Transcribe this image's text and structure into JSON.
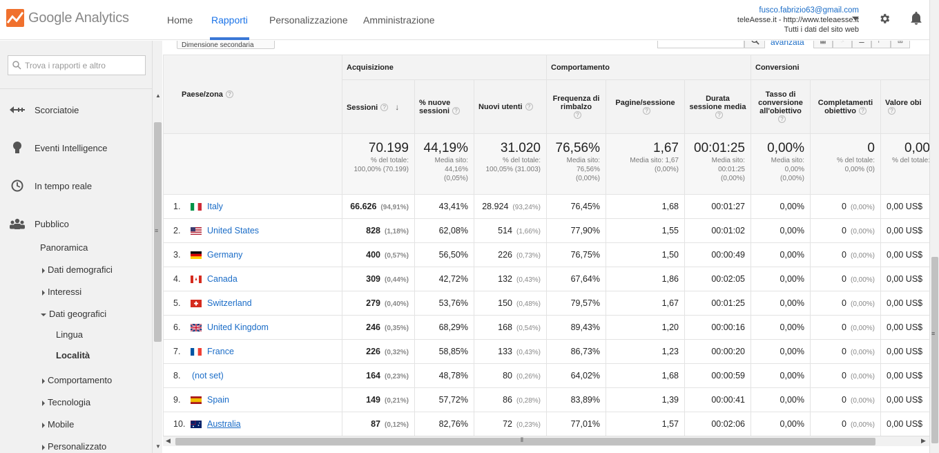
{
  "header": {
    "logo_text": "Google",
    "logo_sub": "Analytics",
    "nav": [
      "Home",
      "Rapporti",
      "Personalizzazione",
      "Amministrazione"
    ],
    "account_email": "fusco.fabrizio63@gmail.com",
    "account_site": "teleAesse.it - http://www.teleaesse.it",
    "account_view": "Tutti i dati del sito web"
  },
  "sidebar": {
    "search_placeholder": "Trova i rapporti e altro",
    "items": [
      {
        "label": "Scorciatoie",
        "icon": "shortcut-icon"
      },
      {
        "label": "Eventi Intelligence",
        "icon": "lightbulb-icon"
      },
      {
        "label": "In tempo reale",
        "icon": "clock-icon"
      },
      {
        "label": "Pubblico",
        "icon": "people-icon"
      }
    ],
    "sub": {
      "panoramica": "Panoramica",
      "dati_demografici": "Dati demografici",
      "interessi": "Interessi",
      "dati_geografici": "Dati geografici",
      "lingua": "Lingua",
      "localita": "Località",
      "comportamento": "Comportamento",
      "tecnologia": "Tecnologia",
      "mobile": "Mobile",
      "personalizzato": "Personalizzato"
    }
  },
  "toolbar": {
    "secondary_dimension": "Dimensione secondaria",
    "advanced": "avanzata"
  },
  "table": {
    "dim_header": "Paese/zona",
    "groups": [
      "Acquisizione",
      "Comportamento",
      "Conversioni"
    ],
    "columns": [
      "Sessioni",
      "% nuove sessioni",
      "Nuovi utenti",
      "Frequenza di rimbalzo",
      "Pagine/sessione",
      "Durata sessione media",
      "Tasso di conversione all'obiettivo",
      "Completamenti obiettivo",
      "Valore obi"
    ],
    "totals": [
      {
        "big": "70.199",
        "l1": "% del totale:",
        "l2": "100,00% (70.199)",
        "l3": ""
      },
      {
        "big": "44,19%",
        "l1": "Media sito:",
        "l2": "44,16%",
        "l3": "(0,05%)"
      },
      {
        "big": "31.020",
        "l1": "% del totale:",
        "l2": "100,05% (31.003)",
        "l3": ""
      },
      {
        "big": "76,56%",
        "l1": "Media sito:",
        "l2": "76,56%",
        "l3": "(0,00%)"
      },
      {
        "big": "1,67",
        "l1": "Media sito: 1,67",
        "l2": "(0,00%)",
        "l3": ""
      },
      {
        "big": "00:01:25",
        "l1": "Media sito:",
        "l2": "00:01:25",
        "l3": "(0,00%)"
      },
      {
        "big": "0,00%",
        "l1": "Media sito:",
        "l2": "0,00%",
        "l3": "(0,00%)"
      },
      {
        "big": "0",
        "l1": "% del totale:",
        "l2": "0,00% (0)",
        "l3": ""
      },
      {
        "big": "0,00",
        "l1": "% del totale:",
        "l2": "",
        "l3": ""
      }
    ],
    "rows": [
      {
        "n": "1.",
        "country": "Italy",
        "flag": "it",
        "sessions": "66.626",
        "sessions_pct": "(94,91%)",
        "new_pct": "43,41%",
        "new_users": "28.924",
        "new_users_pct": "(93,24%)",
        "bounce": "76,45%",
        "pages": "1,68",
        "duration": "00:01:27",
        "conv": "0,00%",
        "goal": "0",
        "goal_pct": "(0,00%)",
        "value": "0,00 US$"
      },
      {
        "n": "2.",
        "country": "United States",
        "flag": "us",
        "sessions": "828",
        "sessions_pct": "(1,18%)",
        "new_pct": "62,08%",
        "new_users": "514",
        "new_users_pct": "(1,66%)",
        "bounce": "77,90%",
        "pages": "1,55",
        "duration": "00:01:02",
        "conv": "0,00%",
        "goal": "0",
        "goal_pct": "(0,00%)",
        "value": "0,00 US$"
      },
      {
        "n": "3.",
        "country": "Germany",
        "flag": "de",
        "sessions": "400",
        "sessions_pct": "(0,57%)",
        "new_pct": "56,50%",
        "new_users": "226",
        "new_users_pct": "(0,73%)",
        "bounce": "76,75%",
        "pages": "1,50",
        "duration": "00:00:49",
        "conv": "0,00%",
        "goal": "0",
        "goal_pct": "(0,00%)",
        "value": "0,00 US$"
      },
      {
        "n": "4.",
        "country": "Canada",
        "flag": "ca",
        "sessions": "309",
        "sessions_pct": "(0,44%)",
        "new_pct": "42,72%",
        "new_users": "132",
        "new_users_pct": "(0,43%)",
        "bounce": "67,64%",
        "pages": "1,86",
        "duration": "00:02:05",
        "conv": "0,00%",
        "goal": "0",
        "goal_pct": "(0,00%)",
        "value": "0,00 US$"
      },
      {
        "n": "5.",
        "country": "Switzerland",
        "flag": "ch",
        "sessions": "279",
        "sessions_pct": "(0,40%)",
        "new_pct": "53,76%",
        "new_users": "150",
        "new_users_pct": "(0,48%)",
        "bounce": "79,57%",
        "pages": "1,67",
        "duration": "00:01:25",
        "conv": "0,00%",
        "goal": "0",
        "goal_pct": "(0,00%)",
        "value": "0,00 US$"
      },
      {
        "n": "6.",
        "country": "United Kingdom",
        "flag": "gb",
        "sessions": "246",
        "sessions_pct": "(0,35%)",
        "new_pct": "68,29%",
        "new_users": "168",
        "new_users_pct": "(0,54%)",
        "bounce": "89,43%",
        "pages": "1,20",
        "duration": "00:00:16",
        "conv": "0,00%",
        "goal": "0",
        "goal_pct": "(0,00%)",
        "value": "0,00 US$"
      },
      {
        "n": "7.",
        "country": "France",
        "flag": "fr",
        "sessions": "226",
        "sessions_pct": "(0,32%)",
        "new_pct": "58,85%",
        "new_users": "133",
        "new_users_pct": "(0,43%)",
        "bounce": "86,73%",
        "pages": "1,23",
        "duration": "00:00:20",
        "conv": "0,00%",
        "goal": "0",
        "goal_pct": "(0,00%)",
        "value": "0,00 US$"
      },
      {
        "n": "8.",
        "country": "(not set)",
        "flag": "",
        "sessions": "164",
        "sessions_pct": "(0,23%)",
        "new_pct": "48,78%",
        "new_users": "80",
        "new_users_pct": "(0,26%)",
        "bounce": "64,02%",
        "pages": "1,68",
        "duration": "00:00:59",
        "conv": "0,00%",
        "goal": "0",
        "goal_pct": "(0,00%)",
        "value": "0,00 US$"
      },
      {
        "n": "9.",
        "country": "Spain",
        "flag": "es",
        "sessions": "149",
        "sessions_pct": "(0,21%)",
        "new_pct": "57,72%",
        "new_users": "86",
        "new_users_pct": "(0,28%)",
        "bounce": "83,89%",
        "pages": "1,39",
        "duration": "00:00:41",
        "conv": "0,00%",
        "goal": "0",
        "goal_pct": "(0,00%)",
        "value": "0,00 US$"
      },
      {
        "n": "10.",
        "country": "Australia",
        "flag": "au",
        "sessions": "87",
        "sessions_pct": "(0,12%)",
        "new_pct": "82,76%",
        "new_users": "72",
        "new_users_pct": "(0,23%)",
        "bounce": "77,01%",
        "pages": "1,57",
        "duration": "00:02:06",
        "conv": "0,00%",
        "goal": "0",
        "goal_pct": "(0,00%)",
        "value": "0,00 US$"
      }
    ]
  },
  "colors": {
    "accent": "#1a6cc7",
    "logo": "#f0712e",
    "nav_active": "#3a78d6"
  }
}
